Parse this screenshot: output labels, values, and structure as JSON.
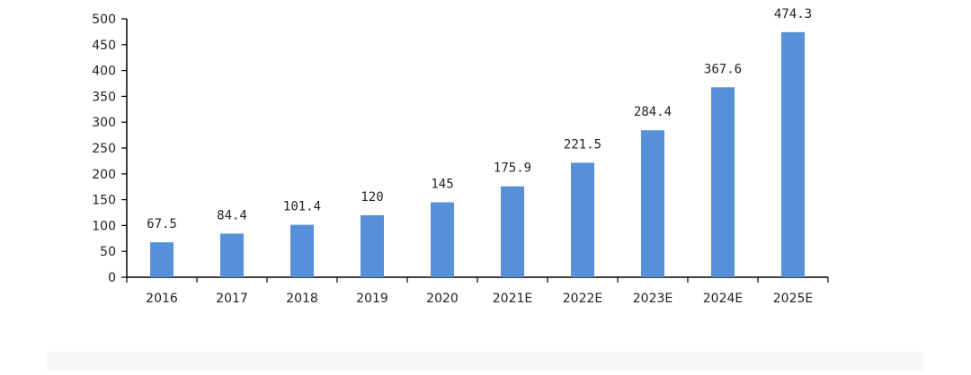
{
  "chart_data": {
    "type": "bar",
    "title": "",
    "xlabel": "",
    "ylabel": "",
    "categories": [
      "2016",
      "2017",
      "2018",
      "2019",
      "2020",
      "2021E",
      "2022E",
      "2023E",
      "2024E",
      "2025E"
    ],
    "values": [
      67.5,
      84.4,
      101.4,
      120,
      145,
      175.9,
      221.5,
      284.4,
      367.6,
      474.3
    ],
    "value_labels": [
      "67.5",
      "84.4",
      "101.4",
      "120",
      "145",
      "175.9",
      "221.5",
      "284.4",
      "367.6",
      "474.3"
    ],
    "ylim": [
      0,
      500
    ],
    "yticks": [
      0,
      50,
      100,
      150,
      200,
      250,
      300,
      350,
      400,
      450,
      500
    ],
    "ytick_labels": [
      "0",
      "50",
      "100",
      "150",
      "200",
      "250",
      "300",
      "350",
      "400",
      "450",
      "500"
    ],
    "grid": false,
    "legend": "none",
    "bar_color": "#5590d9"
  }
}
